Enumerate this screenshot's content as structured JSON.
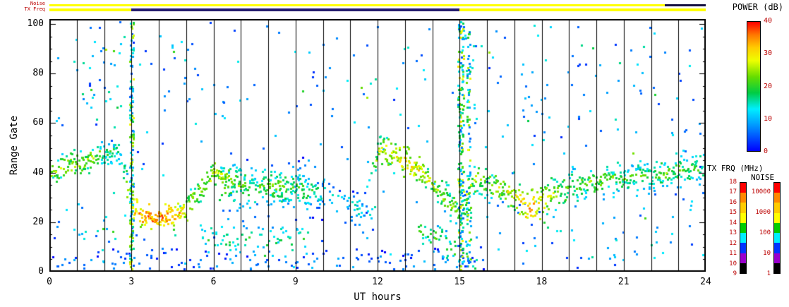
{
  "figure": {
    "bg": "#ffffff",
    "axis_color": "#000000",
    "tick_label_color": "#bb0000"
  },
  "top_strip": {
    "noise_label": "Noise",
    "txfreq_label": "TX Freq",
    "noise_segments": [
      {
        "t0": 0,
        "t1": 22.5,
        "color": "#ffff00"
      },
      {
        "t0": 22.5,
        "t1": 24,
        "color": "#15103f"
      }
    ],
    "txfreq_segments": [
      {
        "t0": 0,
        "t1": 3,
        "color": "#ffff00"
      },
      {
        "t0": 3,
        "t1": 15,
        "color": "#241c6e"
      },
      {
        "t0": 15,
        "t1": 24,
        "color": "#ffff00"
      }
    ]
  },
  "axes": {
    "xlabel": "UT hours",
    "ylabel": "Range Gate",
    "x_ticks": [
      0,
      3,
      6,
      9,
      12,
      15,
      18,
      21,
      24
    ],
    "x_minor_every": 1,
    "y_ticks": [
      0,
      20,
      40,
      60,
      80,
      100
    ],
    "y_minor_every": 5,
    "xlim": [
      0,
      24
    ],
    "ylim": [
      0,
      102
    ]
  },
  "colorbars": {
    "power": {
      "title": "POWER (dB)",
      "ticks": [
        0,
        10,
        20,
        30,
        40
      ],
      "min": 0,
      "max": 40,
      "stops": [
        [
          0,
          "#0000ff"
        ],
        [
          8,
          "#0099ff"
        ],
        [
          13,
          "#00eeff"
        ],
        [
          18,
          "#00cc44"
        ],
        [
          23,
          "#66dd00"
        ],
        [
          28,
          "#eeff00"
        ],
        [
          32,
          "#ffcc00"
        ],
        [
          36,
          "#ff7700"
        ],
        [
          40,
          "#ff0000"
        ]
      ]
    },
    "tx_frq": {
      "title": "TX FRQ (MHz)",
      "ticks": [
        18,
        17,
        16,
        15,
        14,
        13,
        12,
        11,
        10,
        9
      ],
      "segment_colors": [
        "#ff0000",
        "#ff8800",
        "#ffcc00",
        "#ffff00",
        "#00cc00",
        "#00eeff",
        "#0033ff",
        "#9900cc",
        "#000000"
      ]
    },
    "noise": {
      "title": "NOISE",
      "ticks": [
        10000,
        1000,
        100,
        10,
        1
      ],
      "segment_colors": [
        "#ff0000",
        "#ff8800",
        "#ffcc00",
        "#ffff00",
        "#00cc00",
        "#00eeff",
        "#0033ff",
        "#9900cc",
        "#000000"
      ]
    }
  },
  "chart_data": {
    "type": "heatmap",
    "title": "",
    "xlabel": "UT hours",
    "ylabel": "Range Gate",
    "xlim": [
      0,
      24
    ],
    "ylim": [
      0,
      102
    ],
    "x_ticks": [
      0,
      3,
      6,
      9,
      12,
      15,
      18,
      21,
      24
    ],
    "y_ticks": [
      0,
      20,
      40,
      60,
      80,
      100
    ],
    "color_scale": "POWER (dB), 0 to 40, blue-cyan-green-yellow-red",
    "grid": "vertical black line every 1 hour",
    "seed": 7,
    "band_track": {
      "description": "main ionospheric backscatter band: center range gate and power vs UT",
      "t": [
        0,
        0.5,
        1,
        1.5,
        2,
        2.5,
        3,
        3.5,
        4,
        4.5,
        5,
        5.5,
        6,
        6.5,
        7,
        7.5,
        8,
        8.5,
        9,
        9.5,
        10,
        10.5,
        11,
        11.5,
        12,
        12.5,
        13,
        13.5,
        14,
        14.5,
        15,
        15.5,
        16,
        16.5,
        17,
        17.5,
        18,
        18.5,
        19,
        19.5,
        20,
        20.5,
        21,
        21.5,
        22,
        22.5,
        23,
        23.5,
        24
      ],
      "center_gate": [
        40,
        43,
        44,
        46,
        48,
        50,
        26,
        22,
        22,
        23,
        26,
        33,
        41,
        38,
        36,
        34,
        35,
        35,
        34,
        33,
        32,
        30,
        28,
        26,
        50,
        48,
        45,
        41,
        36,
        30,
        24,
        38,
        36,
        34,
        31,
        26,
        28,
        33,
        35,
        36,
        37,
        38,
        38,
        39,
        40,
        40,
        41,
        42,
        42
      ],
      "power_db": [
        22,
        24,
        25,
        24,
        20,
        15,
        32,
        36,
        36,
        34,
        28,
        24,
        26,
        24,
        22,
        20,
        22,
        22,
        20,
        18,
        15,
        12,
        12,
        12,
        26,
        28,
        30,
        28,
        26,
        24,
        22,
        24,
        24,
        26,
        28,
        36,
        30,
        24,
        22,
        22,
        22,
        22,
        20,
        20,
        20,
        22,
        22,
        20,
        20
      ]
    },
    "band_regions": [
      {
        "t0": 0,
        "t1": 2.5,
        "spread": 2.5,
        "density": 3
      },
      {
        "t0": 2.5,
        "t1": 3,
        "spread": 3,
        "density": 2
      },
      {
        "t0": 3,
        "t1": 5,
        "spread": 2.2,
        "density": 4
      },
      {
        "t0": 5,
        "t1": 6.5,
        "spread": 2.5,
        "density": 3
      },
      {
        "t0": 6.5,
        "t1": 10,
        "spread": 4.5,
        "density": 3.5
      },
      {
        "t0": 10,
        "t1": 11.9,
        "spread": 3,
        "density": 1.2
      },
      {
        "t0": 11.9,
        "t1": 15,
        "spread": 2.8,
        "density": 3.5
      },
      {
        "t0": 15,
        "t1": 24,
        "spread": 3.5,
        "density": 3.2
      }
    ],
    "extra_bands": [
      {
        "t0": 5.5,
        "t1": 9.5,
        "c0": 14,
        "c1": 13,
        "spread": 3.5,
        "density": 1.5,
        "power": 18
      },
      {
        "t0": 6.2,
        "t1": 7.1,
        "c0": 35,
        "c1": 35,
        "spread": 6,
        "density": 3,
        "power": 22
      },
      {
        "t0": 8.0,
        "t1": 9.4,
        "c0": 35,
        "c1": 34,
        "spread": 6,
        "density": 2,
        "power": 20
      },
      {
        "t0": 13.5,
        "t1": 15.6,
        "c0": 18,
        "c1": 4,
        "spread": 3.5,
        "density": 2,
        "power": 20
      },
      {
        "t0": 0,
        "t1": 16,
        "c0": 4,
        "c1": 4,
        "spread": 3,
        "density": 0.7,
        "power": 8
      },
      {
        "t0": 10.8,
        "t1": 11.9,
        "c0": 24,
        "c1": 26,
        "spread": 3,
        "density": 1.2,
        "power": 14
      }
    ],
    "background_scatter": {
      "density_per_hour": 11,
      "power_min": 2,
      "power_max": 14,
      "regions": [
        {
          "t0": 0,
          "t1": 3,
          "gmin": 55,
          "gmax": 100,
          "per_hour": 7
        },
        {
          "t0": 1,
          "t1": 2.6,
          "gmin": 60,
          "gmax": 95,
          "per_hour": 6
        },
        {
          "t0": 4.5,
          "t1": 7,
          "gmin": 60,
          "gmax": 100,
          "per_hour": 4
        },
        {
          "t0": 11.3,
          "t1": 13.2,
          "gmin": 55,
          "gmax": 100,
          "per_hour": 4
        },
        {
          "t0": 15,
          "t1": 18.2,
          "gmin": 55,
          "gmax": 100,
          "per_hour": 8
        },
        {
          "t0": 18.2,
          "t1": 23.8,
          "gmin": 55,
          "gmax": 95,
          "per_hour": 3
        },
        {
          "t0": 15,
          "t1": 24,
          "gmin": 5,
          "gmax": 30,
          "per_hour": 4
        },
        {
          "t0": 0,
          "t1": 3,
          "gmin": 5,
          "gmax": 35,
          "per_hour": 4
        }
      ]
    },
    "dense_columns": [
      {
        "t": 2.98,
        "halfwidth": 0.07,
        "count": 150
      },
      {
        "t": 15.02,
        "halfwidth": 0.1,
        "count": 190
      },
      {
        "t": 15.3,
        "halfwidth": 0.08,
        "count": 80
      }
    ]
  }
}
